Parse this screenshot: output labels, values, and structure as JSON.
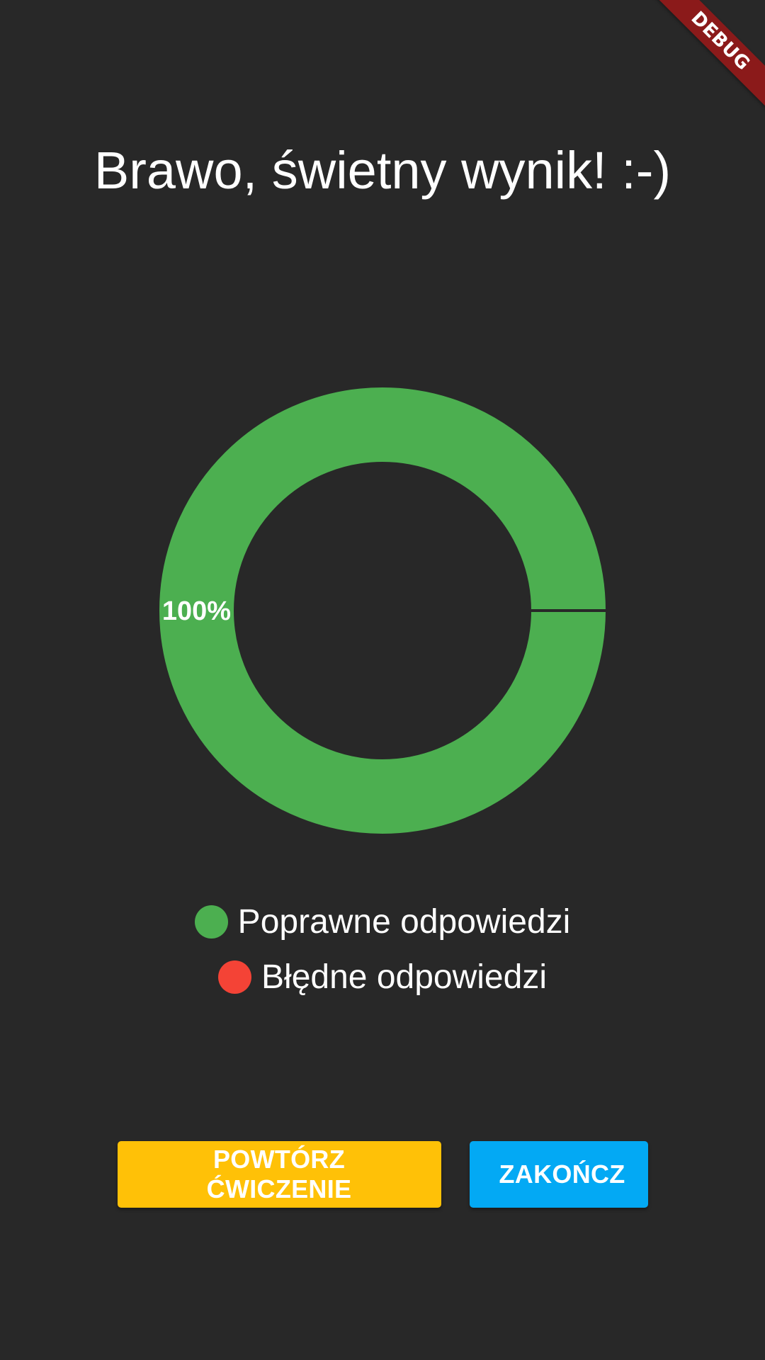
{
  "debug_banner": "DEBUG",
  "title": "Brawo, świetny wynik! :-)",
  "colors": {
    "background": "#282828",
    "correct": "#4caf50",
    "wrong": "#f44336",
    "repeat_button": "#ffc107",
    "finish_button": "#03a9f4"
  },
  "chart_data": {
    "type": "pie",
    "variant": "donut",
    "series": [
      {
        "name": "Poprawne odpowiedzi",
        "value": 100,
        "label": "100%",
        "color": "#4caf50"
      },
      {
        "name": "Błędne odpowiedzi",
        "value": 0,
        "label": "",
        "color": "#f44336"
      }
    ],
    "legend_placement": "bottom"
  },
  "legend": [
    {
      "label": "Poprawne odpowiedzi",
      "color": "#4caf50"
    },
    {
      "label": "Błędne odpowiedzi",
      "color": "#f44336"
    }
  ],
  "buttons": {
    "repeat_label": "POWTÓRZ ĆWICZENIE",
    "finish_label": "ZAKOŃCZ"
  }
}
